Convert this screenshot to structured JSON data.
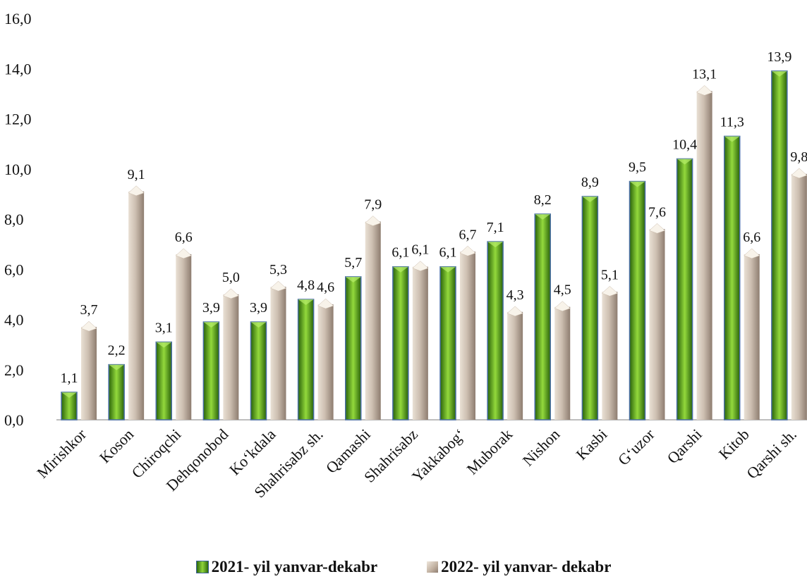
{
  "chart_data": {
    "type": "bar",
    "categories": [
      "Mirishkor",
      "Koson",
      "Chiroqchi",
      "Dehqonobod",
      "Ko‘kdala",
      "Shahrisabz sh.",
      "Qamashi",
      "Shahrisabz",
      "Yakkabog‘",
      "Muborak",
      "Nishon",
      "Kasbi",
      "G‘uzor",
      "Qarshi",
      "Kitob",
      "Qarshi sh."
    ],
    "series": [
      {
        "name": "2021- yil yanvar-dekabr",
        "values": [
          1.1,
          2.2,
          3.1,
          3.9,
          3.9,
          4.8,
          5.7,
          6.1,
          6.1,
          7.1,
          8.2,
          8.9,
          9.5,
          10.4,
          11.3,
          13.9
        ],
        "labels": [
          "1,1",
          "2,2",
          "3,1",
          "3,9",
          "3,9",
          "4,8",
          "5,7",
          "6,1",
          "6,1",
          "7,1",
          "8,2",
          "8,9",
          "9,5",
          "10,4",
          "11,3",
          "13,9"
        ],
        "color": "#6cbf2a"
      },
      {
        "name": "2022- yil yanvar- dekabr",
        "values": [
          3.7,
          9.1,
          6.6,
          5.0,
          5.3,
          4.6,
          7.9,
          6.1,
          6.7,
          4.3,
          4.5,
          5.1,
          7.6,
          13.1,
          6.6,
          9.8
        ],
        "labels": [
          "3,7",
          "9,1",
          "6,6",
          "5,0",
          "5,3",
          "4,6",
          "7,9",
          "6,1",
          "6,7",
          "4,3",
          "4,5",
          "5,1",
          "7,6",
          "13,1",
          "6,6",
          "9,8"
        ],
        "color": "#b9a898"
      }
    ],
    "yticks": [
      "0,0",
      "2,0",
      "4,0",
      "6,0",
      "8,0",
      "10,0",
      "12,0",
      "14,0",
      "16,0"
    ],
    "ylim": [
      0,
      16
    ],
    "title": "",
    "xlabel": "",
    "ylabel": "",
    "grid": false,
    "legend_position": "bottom"
  }
}
